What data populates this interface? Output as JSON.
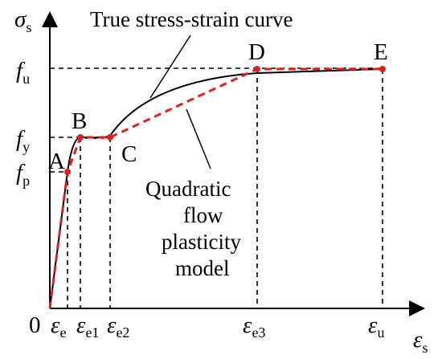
{
  "diagram": {
    "axes": {
      "y_symbol": "σ",
      "y_subscript": "s",
      "x_symbol": "ε",
      "x_subscript": "s",
      "origin_label": "0"
    },
    "y_ticks": [
      {
        "symbol": "f",
        "subscript": "u"
      },
      {
        "symbol": "f",
        "subscript": "y"
      },
      {
        "symbol": "f",
        "subscript": "p"
      }
    ],
    "x_ticks": [
      {
        "symbol": "ε",
        "subscript": "e"
      },
      {
        "symbol": "ε",
        "subscript": "e1"
      },
      {
        "symbol": "ε",
        "subscript": "e2"
      },
      {
        "symbol": "ε",
        "subscript": "e3"
      },
      {
        "symbol": "ε",
        "subscript": "u"
      }
    ],
    "points": [
      "A",
      "B",
      "C",
      "D",
      "E"
    ],
    "annotations": {
      "true_curve": "True stress-strain curve",
      "model_line1": "Quadratic",
      "model_line2": "flow",
      "model_line3": "plasticity",
      "model_line4": "model"
    },
    "colors": {
      "axis": "#000000",
      "true_curve": "#000000",
      "model": "#e02020",
      "guide": "#000000"
    }
  }
}
